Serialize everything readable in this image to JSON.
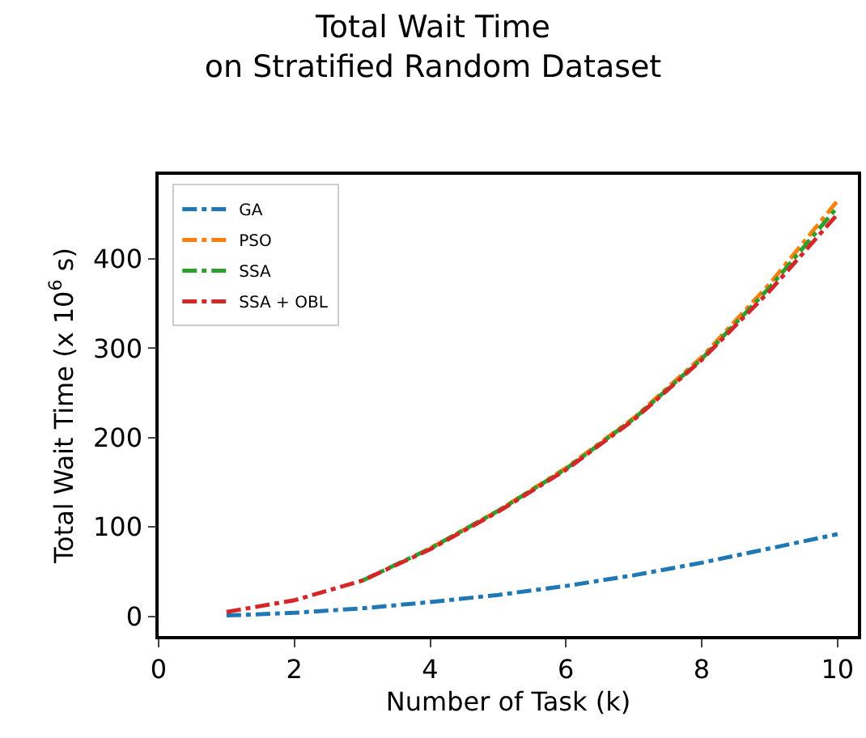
{
  "chart_data": {
    "type": "line",
    "title": "Total Wait Time\non Stratified Random Dataset",
    "xlabel": "Number of Task (k)",
    "ylabel": "Total Wait Time (x 10$^{6}$ s)",
    "x": [
      1,
      2,
      3,
      4,
      5,
      6,
      7,
      8,
      9,
      10
    ],
    "series": [
      {
        "name": "GA",
        "color": "#1f77b4",
        "values": [
          1,
          4,
          9,
          16,
          24,
          34,
          46,
          60,
          76,
          92
        ]
      },
      {
        "name": "PSO",
        "color": "#ff7f0e",
        "values": [
          null,
          null,
          null,
          76,
          118,
          166,
          222,
          290,
          372,
          465
        ]
      },
      {
        "name": "SSA",
        "color": "#2ca02c",
        "values": [
          null,
          null,
          40,
          76,
          118,
          165,
          221,
          288,
          368,
          458
        ]
      },
      {
        "name": "SSA + OBL",
        "color": "#d62728",
        "values": [
          5,
          18,
          40,
          75,
          117,
          164,
          220,
          287,
          364,
          450
        ]
      }
    ],
    "xlim": [
      0,
      10.3
    ],
    "xticks": [
      0,
      2,
      4,
      6,
      8,
      10
    ],
    "ylim": [
      -22,
      494
    ],
    "yticks": [
      0,
      100,
      200,
      300,
      400
    ],
    "grid": false,
    "legend": "top left",
    "line_style": "dashdot",
    "marker": "none"
  }
}
